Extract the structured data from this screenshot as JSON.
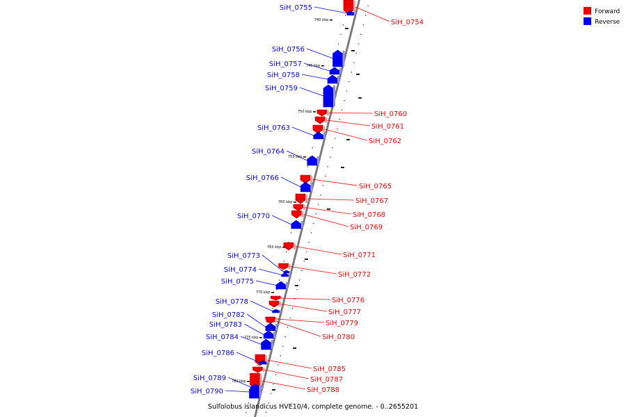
{
  "diagram": {
    "caption": "Sulfolobus islandicus HVE10/4, complete genome. - 0..2655201",
    "legend": [
      {
        "label": "Forward",
        "color": "#ee0000"
      },
      {
        "label": "Reverse",
        "color": "#0000ee"
      }
    ],
    "scale_labels": [
      "740 kbp",
      "745 kbp",
      "750 kbp",
      "755 kbp",
      "760 kbp",
      "765 kbp",
      "770 kbp",
      "775 kbp",
      "780 kbp"
    ],
    "genes": [
      {
        "name": "SiH_0754",
        "strand": "forward"
      },
      {
        "name": "SiH_0755",
        "strand": "reverse"
      },
      {
        "name": "SiH_0756",
        "strand": "reverse"
      },
      {
        "name": "SiH_0757",
        "strand": "reverse"
      },
      {
        "name": "SiH_0758",
        "strand": "reverse"
      },
      {
        "name": "SiH_0759",
        "strand": "reverse"
      },
      {
        "name": "SiH_0760",
        "strand": "forward"
      },
      {
        "name": "SiH_0761",
        "strand": "forward"
      },
      {
        "name": "SiH_0762",
        "strand": "forward"
      },
      {
        "name": "SiH_0763",
        "strand": "reverse"
      },
      {
        "name": "SiH_0764",
        "strand": "reverse"
      },
      {
        "name": "SiH_0765",
        "strand": "forward"
      },
      {
        "name": "SiH_0766",
        "strand": "reverse"
      },
      {
        "name": "SiH_0767",
        "strand": "forward"
      },
      {
        "name": "SiH_0768",
        "strand": "forward"
      },
      {
        "name": "SiH_0769",
        "strand": "forward"
      },
      {
        "name": "SiH_0770",
        "strand": "reverse"
      },
      {
        "name": "SiH_0771",
        "strand": "forward"
      },
      {
        "name": "SiH_0772",
        "strand": "forward"
      },
      {
        "name": "SiH_0773",
        "strand": "reverse"
      },
      {
        "name": "SiH_0774",
        "strand": "reverse"
      },
      {
        "name": "SiH_0775",
        "strand": "reverse"
      },
      {
        "name": "SiH_0776",
        "strand": "forward"
      },
      {
        "name": "SiH_0777",
        "strand": "forward"
      },
      {
        "name": "SiH_0778",
        "strand": "reverse"
      },
      {
        "name": "SiH_0779",
        "strand": "forward"
      },
      {
        "name": "SiH_0780",
        "strand": "forward"
      },
      {
        "name": "SiH_0782",
        "strand": "reverse"
      },
      {
        "name": "SiH_0783",
        "strand": "reverse"
      },
      {
        "name": "SiH_0784",
        "strand": "reverse"
      },
      {
        "name": "SiH_0785",
        "strand": "forward"
      },
      {
        "name": "SiH_0786",
        "strand": "reverse"
      },
      {
        "name": "SiH_0787",
        "strand": "forward"
      },
      {
        "name": "SiH_0788",
        "strand": "forward"
      },
      {
        "name": "SiH_0789",
        "strand": "reverse"
      },
      {
        "name": "SiH_0790",
        "strand": "reverse"
      }
    ]
  }
}
